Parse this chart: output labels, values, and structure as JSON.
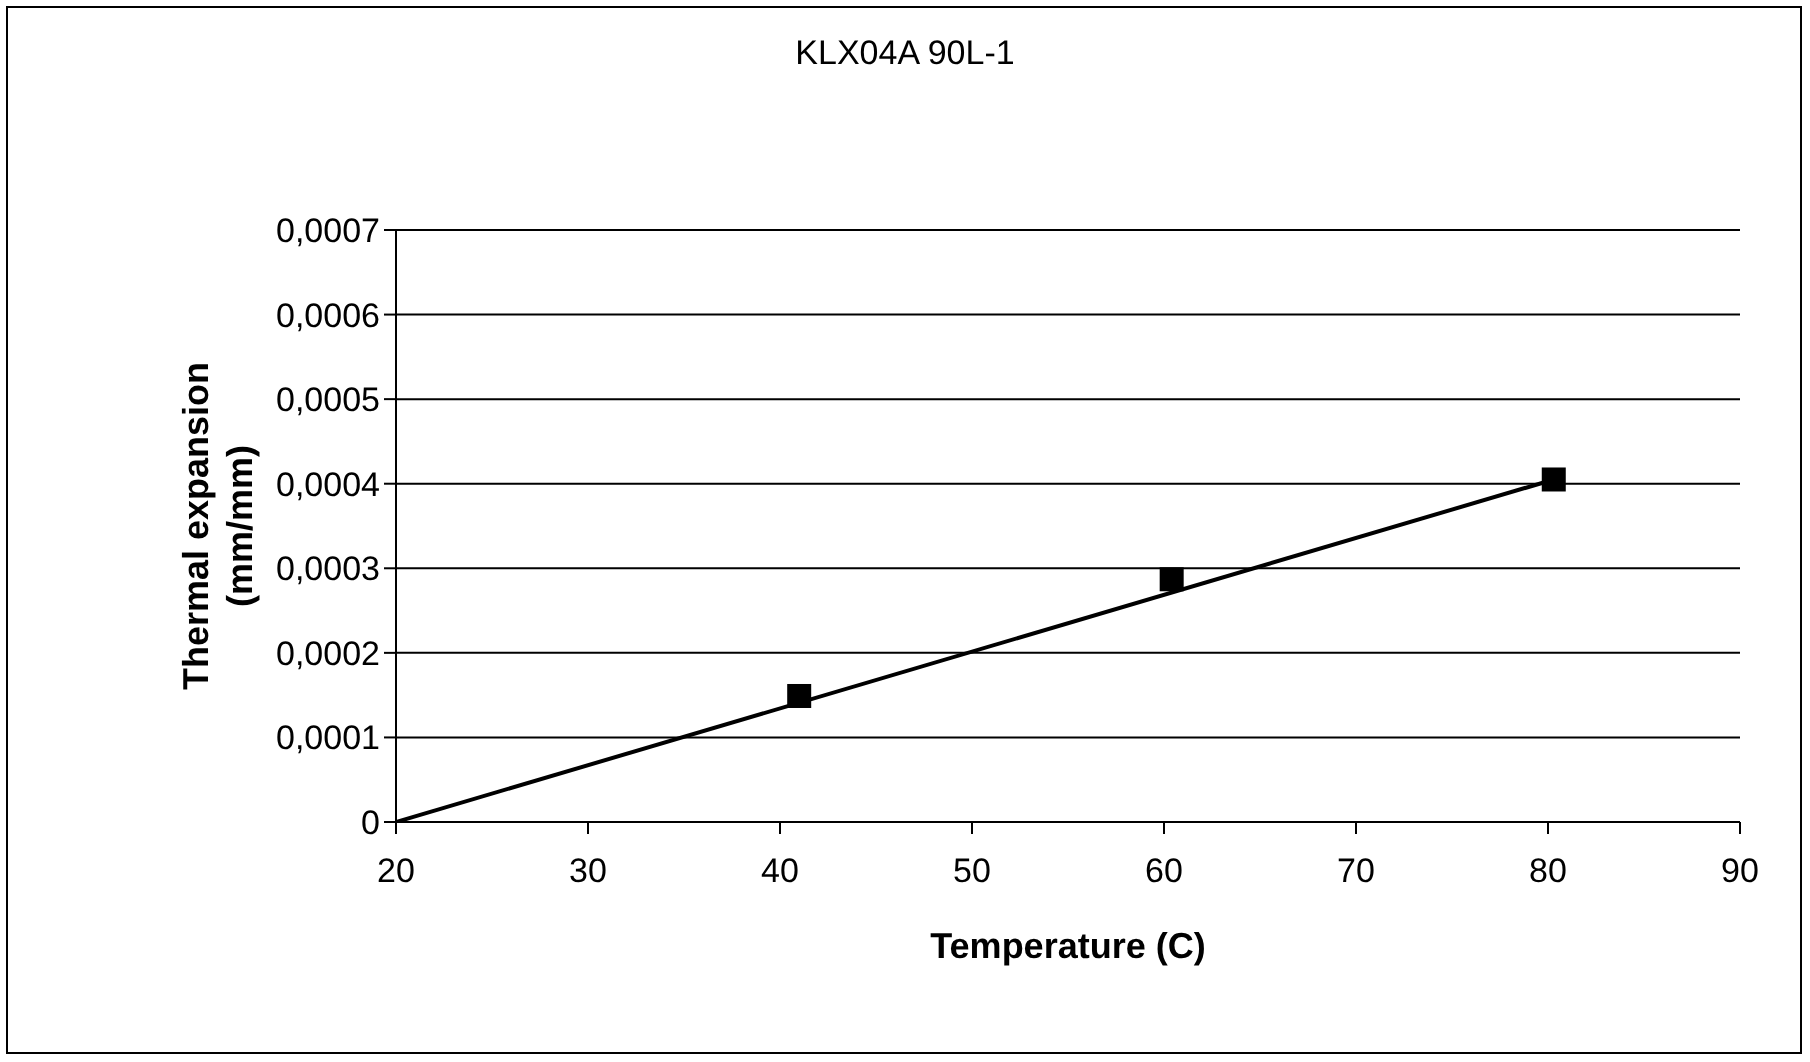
{
  "chart_data": {
    "type": "scatter",
    "title": "KLX04A 90L-1",
    "xlabel": "Temperature (C)",
    "ylabel": "Thermal expansion (mm/mm)",
    "x": [
      41,
      60.4,
      80.3
    ],
    "series": [
      {
        "color": "#000000",
        "values": [
          0.000149,
          0.000287,
          0.000405
        ],
        "marker": "square"
      },
      {
        "type": "line",
        "color": "#000000",
        "x": [
          20,
          80.3
        ],
        "values": [
          0,
          0.000405
        ],
        "marker": "none",
        "line_style": "solid"
      }
    ],
    "xlim": [
      20,
      90
    ],
    "xticks": [
      20,
      30,
      40,
      50,
      60,
      70,
      80,
      90
    ],
    "ylim": [
      0,
      0.0007
    ],
    "yticks": [
      {
        "value": 0,
        "label": "0"
      },
      {
        "value": 0.0001,
        "label": "0,0001"
      },
      {
        "value": 0.0002,
        "label": "0,0002"
      },
      {
        "value": 0.0003,
        "label": "0,0003"
      },
      {
        "value": 0.0004,
        "label": "0,0004"
      },
      {
        "value": 0.0005,
        "label": "0,0005"
      },
      {
        "value": 0.0006,
        "label": "0,0006"
      },
      {
        "value": 0.0007,
        "label": "0,0007"
      }
    ],
    "grid": "y"
  }
}
